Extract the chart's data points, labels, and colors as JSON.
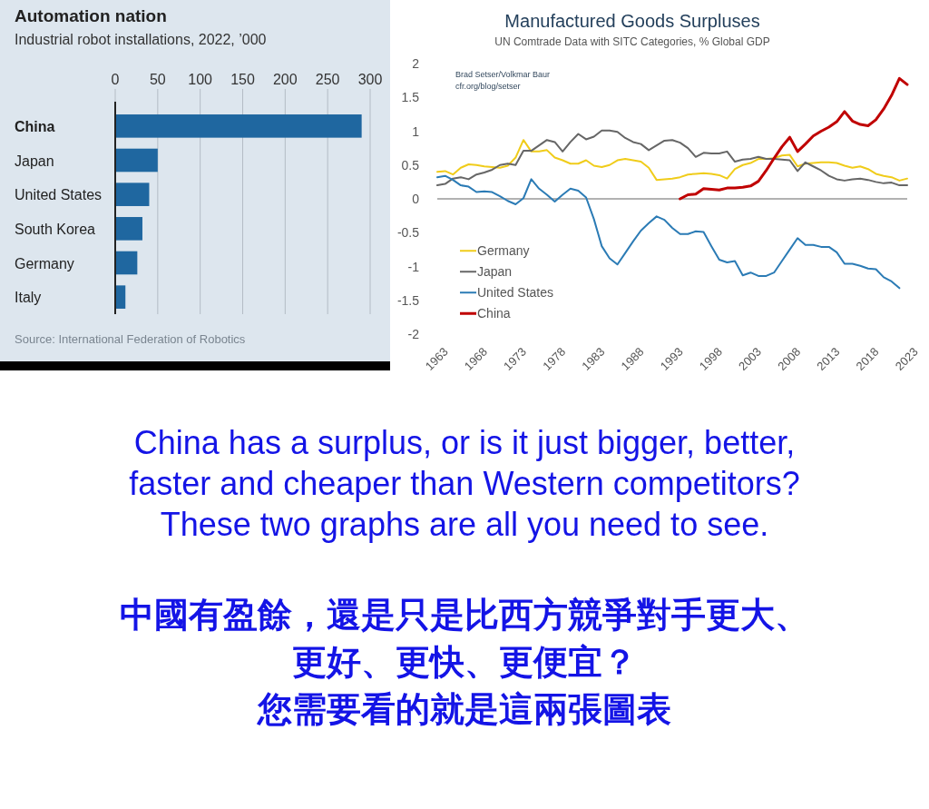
{
  "chart_data": [
    {
      "type": "bar",
      "orientation": "horizontal",
      "title": "Automation nation",
      "subtitle": "Industrial robot installations, 2022, ’000",
      "categories": [
        "China",
        "Japan",
        "United States",
        "South Korea",
        "Germany",
        "Italy"
      ],
      "values": [
        290,
        50,
        40,
        32,
        26,
        12
      ],
      "color": "#1f67a0",
      "xlim": [
        0,
        300
      ],
      "xticks": [
        0,
        50,
        100,
        150,
        200,
        250,
        300
      ],
      "grid": "x",
      "annotations": [
        "Source: International Federation of Robotics"
      ]
    },
    {
      "type": "line",
      "title": "Manufactured Goods Surpluses",
      "subtitle": "UN Comtrade Data with SITC Categories, % Global GDP",
      "x": [
        1963,
        1964,
        1965,
        1966,
        1967,
        1968,
        1969,
        1970,
        1971,
        1972,
        1973,
        1974,
        1975,
        1976,
        1977,
        1978,
        1979,
        1980,
        1981,
        1982,
        1983,
        1984,
        1985,
        1986,
        1987,
        1988,
        1989,
        1990,
        1991,
        1992,
        1993,
        1994,
        1995,
        1996,
        1997,
        1998,
        1999,
        2000,
        2001,
        2002,
        2003,
        2004,
        2005,
        2006,
        2007,
        2008,
        2009,
        2010,
        2011,
        2012,
        2013,
        2014,
        2015,
        2016,
        2017,
        2018,
        2019,
        2020,
        2021,
        2022,
        2023
      ],
      "xlim": [
        1963,
        2023
      ],
      "xticks": [
        1963,
        1968,
        1973,
        1978,
        1983,
        1988,
        1993,
        1998,
        2003,
        2008,
        2013,
        2018,
        2023
      ],
      "ylim": [
        -2,
        2
      ],
      "yticks": [
        -2,
        -1.5,
        -1,
        -0.5,
        0,
        0.5,
        1,
        1.5,
        2
      ],
      "legend": "bottom left",
      "ref_lines": [
        {
          "axis": "y",
          "value": 0,
          "color": "#666666"
        }
      ],
      "annotations": [
        "Brad Setser/Volkmar Baur",
        "cfr.org/blog/setser"
      ],
      "series": [
        {
          "name": "Germany",
          "color": "#f0cc1a",
          "values": [
            0.4,
            0.41,
            0.36,
            0.46,
            0.51,
            0.5,
            0.48,
            0.47,
            0.46,
            0.49,
            0.61,
            0.87,
            0.7,
            0.7,
            0.72,
            0.61,
            0.57,
            0.52,
            0.52,
            0.57,
            0.49,
            0.47,
            0.5,
            0.57,
            0.59,
            0.57,
            0.55,
            0.46,
            0.28,
            0.29,
            0.3,
            0.32,
            0.36,
            0.37,
            0.38,
            0.37,
            0.35,
            0.3,
            0.44,
            0.5,
            0.53,
            0.59,
            0.59,
            0.6,
            0.64,
            0.65,
            0.48,
            0.52,
            0.53,
            0.54,
            0.54,
            0.53,
            0.49,
            0.46,
            0.48,
            0.44,
            0.37,
            0.34,
            0.32,
            0.27,
            0.3
          ]
        },
        {
          "name": "Japan",
          "color": "#666666",
          "values": [
            0.2,
            0.22,
            0.3,
            0.32,
            0.29,
            0.36,
            0.39,
            0.43,
            0.5,
            0.52,
            0.5,
            0.71,
            0.71,
            0.79,
            0.87,
            0.84,
            0.7,
            0.84,
            0.96,
            0.88,
            0.92,
            1.01,
            1.01,
            0.99,
            0.9,
            0.84,
            0.81,
            0.72,
            0.79,
            0.86,
            0.87,
            0.83,
            0.75,
            0.62,
            0.68,
            0.67,
            0.67,
            0.7,
            0.55,
            0.58,
            0.59,
            0.62,
            0.59,
            0.59,
            0.58,
            0.57,
            0.41,
            0.54,
            0.48,
            0.42,
            0.34,
            0.29,
            0.27,
            0.29,
            0.3,
            0.28,
            0.25,
            0.23,
            0.24,
            0.2,
            0.2
          ]
        },
        {
          "name": "United States",
          "color": "#2b7bb5",
          "values": [
            0.32,
            0.34,
            0.28,
            0.2,
            0.18,
            0.1,
            0.11,
            0.1,
            0.04,
            -0.03,
            -0.08,
            0.01,
            0.29,
            0.15,
            0.06,
            -0.04,
            0.06,
            0.15,
            0.12,
            0.02,
            -0.3,
            -0.7,
            -0.88,
            -0.97,
            -0.8,
            -0.63,
            -0.47,
            -0.36,
            -0.26,
            -0.31,
            -0.43,
            -0.52,
            -0.52,
            -0.48,
            -0.49,
            -0.7,
            -0.9,
            -0.94,
            -0.92,
            -1.13,
            -1.09,
            -1.14,
            -1.14,
            -1.09,
            -0.92,
            -0.75,
            -0.58,
            -0.68,
            -0.68,
            -0.71,
            -0.71,
            -0.79,
            -0.96,
            -0.96,
            -0.99,
            -1.03,
            -1.04,
            -1.16,
            -1.22,
            -1.32,
            null
          ]
        },
        {
          "name": "China",
          "color": "#c00000",
          "values": [
            null,
            null,
            null,
            null,
            null,
            null,
            null,
            null,
            null,
            null,
            null,
            null,
            null,
            null,
            null,
            null,
            null,
            null,
            null,
            null,
            null,
            null,
            null,
            null,
            null,
            null,
            null,
            null,
            null,
            null,
            null,
            0.0,
            0.06,
            0.07,
            0.15,
            0.14,
            0.13,
            0.16,
            0.16,
            0.17,
            0.19,
            0.26,
            0.42,
            0.6,
            0.77,
            0.91,
            0.7,
            0.81,
            0.93,
            1.0,
            1.06,
            1.14,
            1.29,
            1.15,
            1.1,
            1.08,
            1.17,
            1.33,
            1.53,
            1.78,
            1.69
          ]
        }
      ]
    },
    {
      "type": "other",
      "annotations": [
        "China has a surplus, or is it just bigger, better,",
        "faster and cheaper than Western competitors?",
        "These two graphs are all you need to see.",
        "中國有盈餘，還是只是比西方競爭對手更大、",
        "更好、更快、更便宜？",
        "您需要看的就是這兩張圖表"
      ],
      "color": "#1414e6"
    }
  ]
}
